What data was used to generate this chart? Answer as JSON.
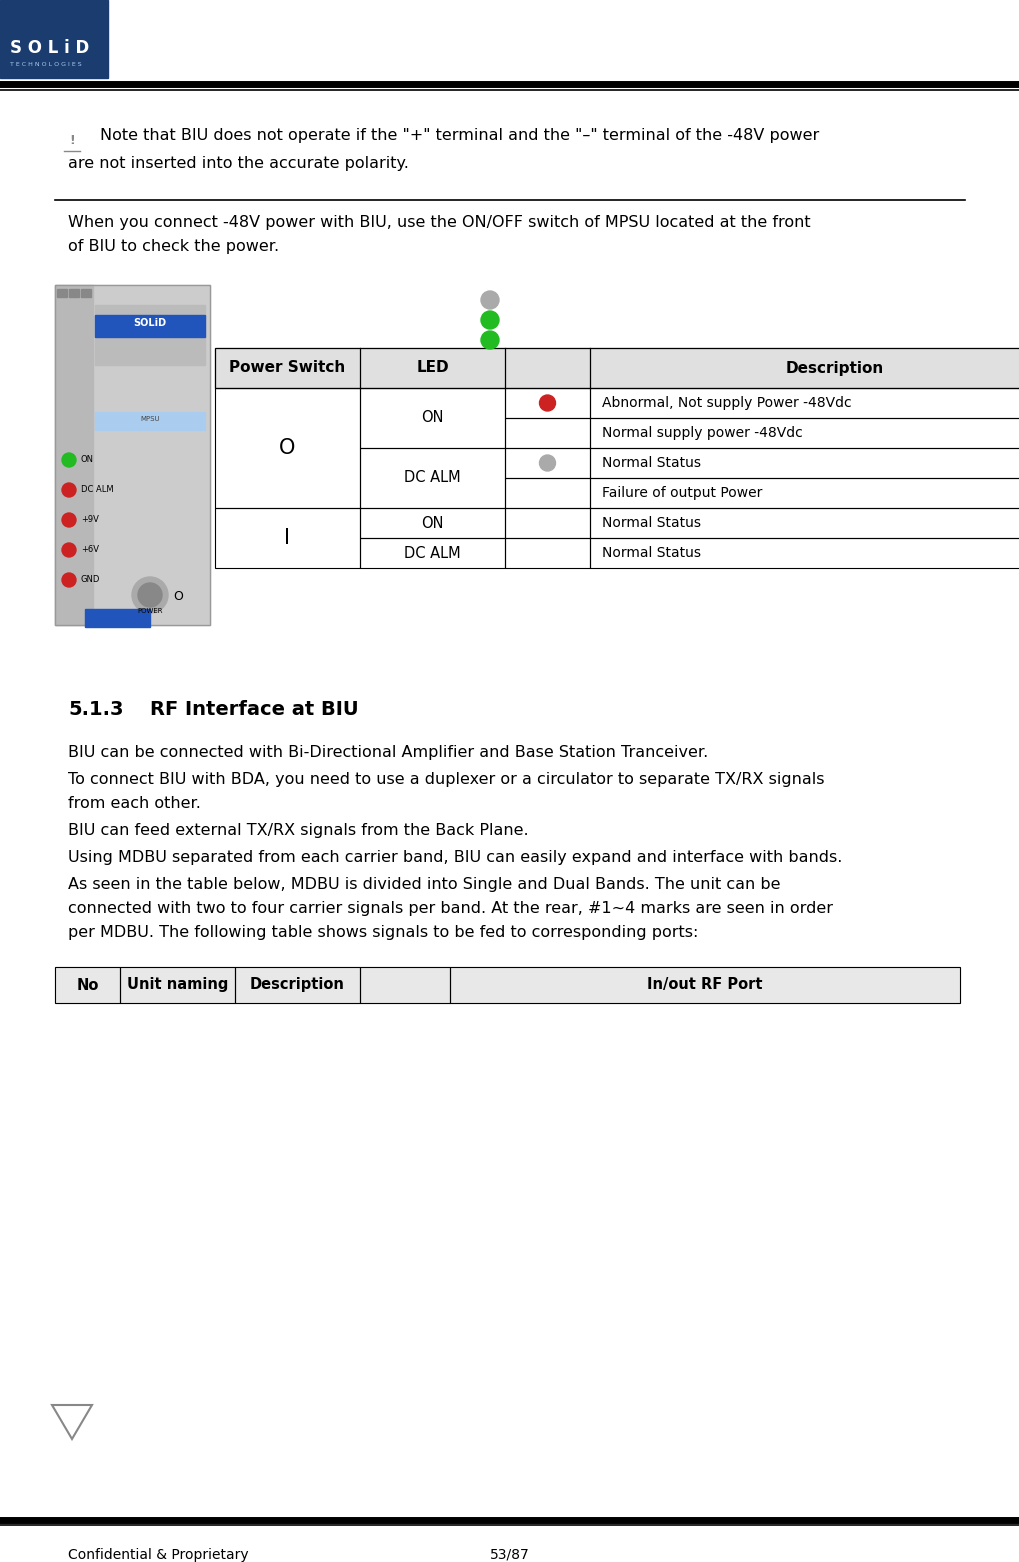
{
  "bg_color": "#ffffff",
  "logo_blue": "#1a3c6e",
  "footer_text": "Confidential & Proprietary",
  "footer_page": "53/87",
  "warning_line1": "Note that BIU does not operate if the \"+\" terminal and the \"–\" terminal of the -48V power",
  "warning_line2": "are not inserted into the accurate polarity.",
  "connect_line1": "When you connect -48V power with BIU, use the ON/OFF switch of MPSU located at the front",
  "connect_line2": "of BIU to check the power.",
  "body_texts": [
    "BIU can be connected with Bi-Directional Amplifier and Base Station Tranceiver.",
    "To connect BIU with BDA, you need to use a duplexer or a circulator to separate TX/RX signals",
    "from each other.",
    "BIU can feed external TX/RX signals from the Back Plane.",
    "Using MDBU separated from each carrier band, BIU can easily expand and interface with bands.",
    "As seen in the table below, MDBU is divided into Single and Dual Bands. The unit can be",
    "connected with two to four carrier signals per band. At the rear, #1~4 marks are seen in order",
    "per MDBU. The following table shows signals to be fed to corresponding ports:"
  ],
  "bottom_table_headers": [
    "No",
    "Unit naming",
    "Description",
    "",
    "In/out RF Port"
  ],
  "bottom_table_widths": [
    65,
    115,
    125,
    90,
    510
  ],
  "green_dot": "#22bb22",
  "red_dot": "#cc2222",
  "gray_dot": "#aaaaaa",
  "table_header_bg": "#e0e0e0",
  "device_bg": "#d0d0d0",
  "device_blue": "#2255bb",
  "device_light_blue": "#aaccee"
}
